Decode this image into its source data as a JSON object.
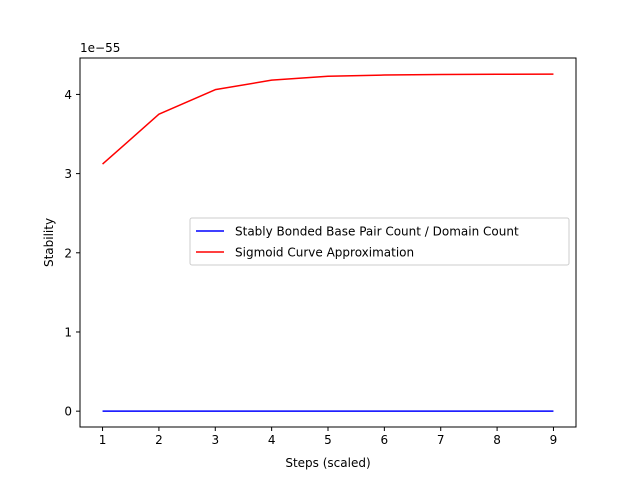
{
  "chart_data": {
    "type": "line",
    "title": "",
    "xlabel": "Steps (scaled)",
    "ylabel": "Stability",
    "y_offset_label": "1e−55",
    "xlim": [
      0.6,
      9.4
    ],
    "ylim": [
      -0.2,
      4.46
    ],
    "x_ticks": [
      1,
      2,
      3,
      4,
      5,
      6,
      7,
      8,
      9
    ],
    "y_ticks": [
      0,
      1,
      2,
      3,
      4
    ],
    "grid": false,
    "legend_position": "center-right",
    "x": [
      1,
      2,
      3,
      4,
      5,
      6,
      7,
      8,
      9
    ],
    "series": [
      {
        "name": "Stably Bonded Base Pair Count / Domain Count",
        "color": "#0000ff",
        "values": [
          0,
          0,
          0,
          0,
          0,
          0,
          0,
          0,
          0
        ]
      },
      {
        "name": "Sigmoid Curve Approximation",
        "color": "#ff0000",
        "values": [
          3.12,
          3.75,
          4.06,
          4.18,
          4.23,
          4.245,
          4.252,
          4.255,
          4.256
        ]
      }
    ]
  }
}
